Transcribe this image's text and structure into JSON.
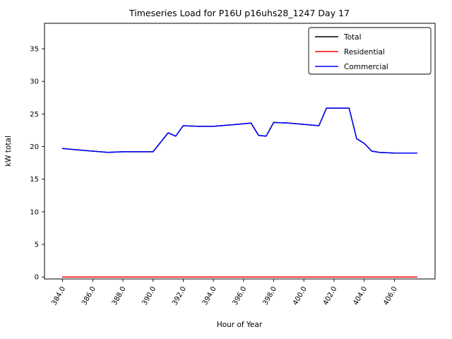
{
  "figure": {
    "title": "Timeseries Load for P16U p16uhs28_1247  Day 17"
  },
  "chart_data": {
    "type": "line",
    "title": "Timeseries Load for P16U p16uhs28_1247  Day 17",
    "xlabel": "Hour of Year",
    "ylabel": "kW total",
    "xlim": [
      382.8,
      408.7
    ],
    "ylim": [
      -0.3,
      38.9
    ],
    "grid": false,
    "legend_position": "upper right",
    "x_ticks": [
      384,
      386,
      388,
      390,
      392,
      394,
      396,
      398,
      400,
      402,
      404,
      406
    ],
    "x_tick_labels": [
      "384.0",
      "386.0",
      "388.0",
      "390.0",
      "392.0",
      "394.0",
      "396.0",
      "398.0",
      "400.0",
      "402.0",
      "404.0",
      "406.0"
    ],
    "y_ticks": [
      0,
      5,
      10,
      15,
      20,
      25,
      30,
      35
    ],
    "y_tick_labels": [
      "0",
      "5",
      "10",
      "15",
      "20",
      "25",
      "30",
      "35"
    ],
    "x": [
      384,
      385,
      386,
      387,
      388,
      389,
      390,
      391,
      391.5,
      392,
      393,
      394,
      395,
      396,
      396.5,
      397,
      397.5,
      398,
      399,
      400,
      401,
      401.5,
      402,
      403,
      403.5,
      404,
      404.5,
      405,
      406,
      407,
      407.5
    ],
    "series": [
      {
        "name": "Total",
        "color": "#000000",
        "values": [
          19.7,
          19.5,
          19.3,
          19.1,
          19.2,
          19.2,
          19.2,
          22.1,
          21.6,
          23.2,
          23.1,
          23.1,
          23.3,
          23.5,
          23.6,
          21.7,
          21.6,
          23.7,
          23.6,
          23.4,
          23.2,
          25.9,
          25.9,
          25.9,
          21.2,
          20.5,
          19.3,
          19.1,
          19.0,
          19.0,
          19.0
        ]
      },
      {
        "name": "Residential",
        "color": "#ff0000",
        "values": [
          0,
          0,
          0,
          0,
          0,
          0,
          0,
          0,
          0,
          0,
          0,
          0,
          0,
          0,
          0,
          0,
          0,
          0,
          0,
          0,
          0,
          0,
          0,
          0,
          0,
          0,
          0,
          0,
          0,
          0,
          0
        ]
      },
      {
        "name": "Commercial",
        "color": "#0000ff",
        "values": [
          19.7,
          19.5,
          19.3,
          19.1,
          19.2,
          19.2,
          19.2,
          22.1,
          21.6,
          23.2,
          23.1,
          23.1,
          23.3,
          23.5,
          23.6,
          21.7,
          21.6,
          23.7,
          23.6,
          23.4,
          23.2,
          25.9,
          25.9,
          25.9,
          21.2,
          20.5,
          19.3,
          19.1,
          19.0,
          19.0,
          19.0
        ]
      }
    ]
  }
}
